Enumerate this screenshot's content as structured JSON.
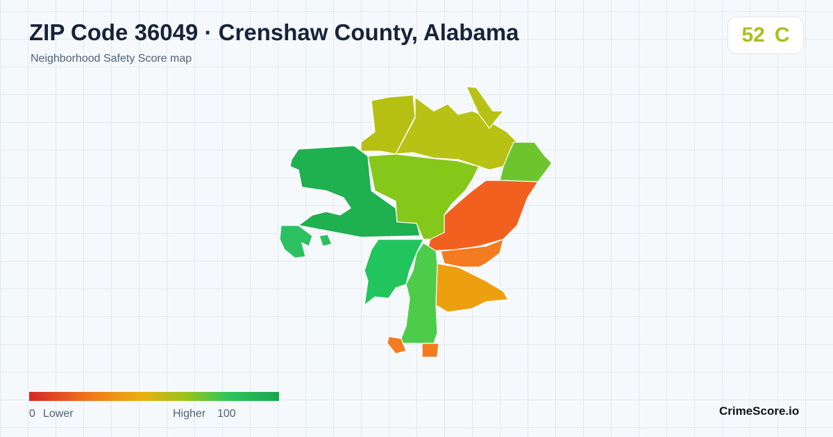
{
  "header": {
    "title": "ZIP Code 36049 · Crenshaw County, Alabama",
    "subtitle": "Neighborhood Safety Score map"
  },
  "score": {
    "value": 52,
    "grade": "C"
  },
  "legend": {
    "min": 0,
    "min_label": "Lower",
    "max_label": "Higher",
    "max": 100
  },
  "brand": "CrimeScore.io"
}
